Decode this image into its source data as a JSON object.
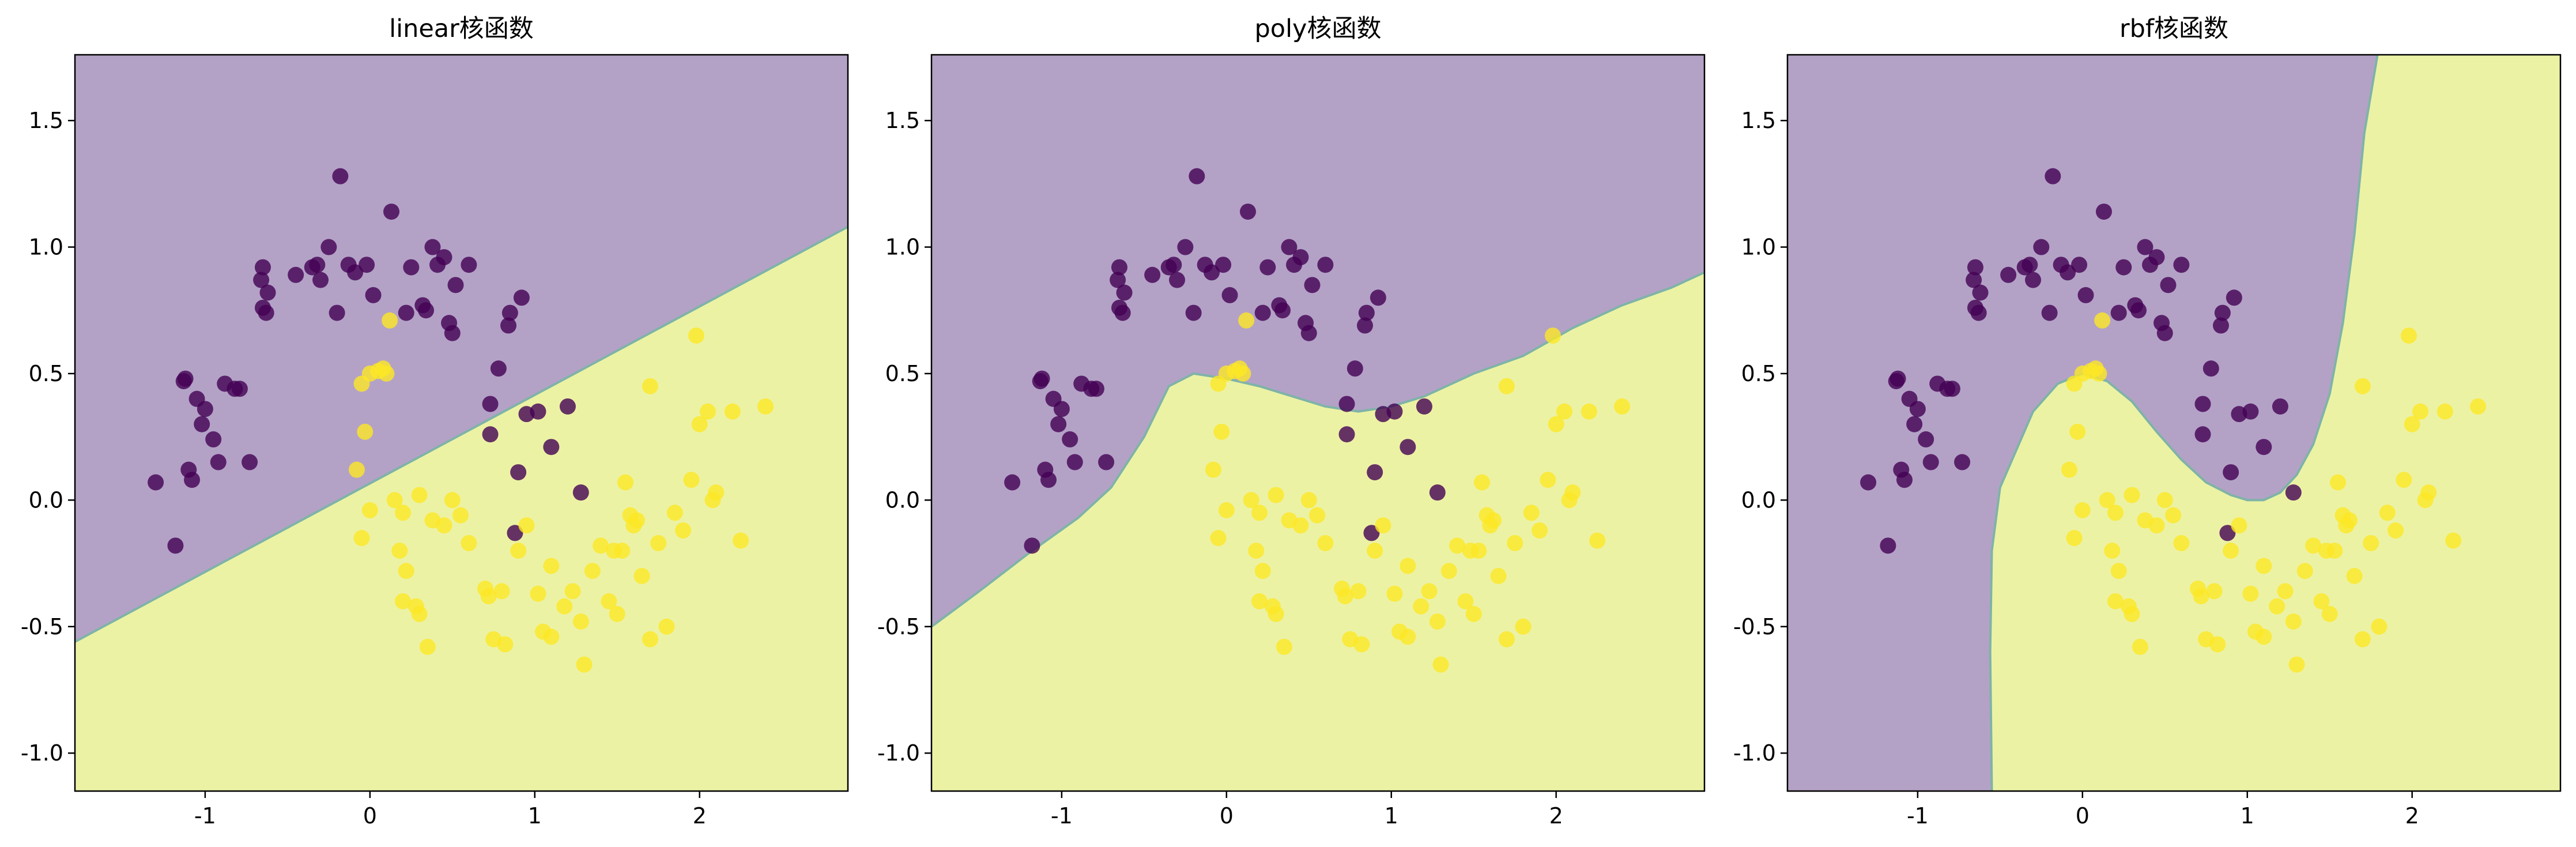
{
  "chart_data": [
    {
      "type": "scatter",
      "title": "linear核函数",
      "kernel": "linear",
      "xlim": [
        -1.79,
        2.9
      ],
      "ylim": [
        -1.15,
        1.76
      ],
      "xticks": [
        -1,
        0,
        1,
        2
      ],
      "yticks": [
        -1.0,
        -0.5,
        0.0,
        0.5,
        1.0,
        1.5
      ],
      "decision_boundary": [
        [
          -1.79,
          -0.56
        ],
        [
          2.9,
          1.08
        ]
      ]
    },
    {
      "type": "scatter",
      "title": "poly核函数",
      "kernel": "poly",
      "xlim": [
        -1.79,
        2.9
      ],
      "ylim": [
        -1.15,
        1.76
      ],
      "xticks": [
        -1,
        0,
        1,
        2
      ],
      "yticks": [
        -1.0,
        -0.5,
        0.0,
        0.5,
        1.0,
        1.5
      ],
      "decision_boundary": [
        [
          -1.79,
          -0.5
        ],
        [
          -1.5,
          -0.36
        ],
        [
          -1.2,
          -0.21
        ],
        [
          -0.9,
          -0.07
        ],
        [
          -0.7,
          0.05
        ],
        [
          -0.5,
          0.25
        ],
        [
          -0.35,
          0.45
        ],
        [
          -0.2,
          0.5
        ],
        [
          0.0,
          0.48
        ],
        [
          0.2,
          0.45
        ],
        [
          0.4,
          0.41
        ],
        [
          0.6,
          0.37
        ],
        [
          0.8,
          0.35
        ],
        [
          1.0,
          0.37
        ],
        [
          1.2,
          0.41
        ],
        [
          1.5,
          0.5
        ],
        [
          1.8,
          0.57
        ],
        [
          2.1,
          0.68
        ],
        [
          2.4,
          0.77
        ],
        [
          2.7,
          0.84
        ],
        [
          2.9,
          0.9
        ]
      ]
    },
    {
      "type": "scatter",
      "title": "rbf核函数",
      "kernel": "rbf",
      "xlim": [
        -1.79,
        2.9
      ],
      "ylim": [
        -1.15,
        1.76
      ],
      "xticks": [
        -1,
        0,
        1,
        2
      ],
      "yticks": [
        -1.0,
        -0.5,
        0.0,
        0.5,
        1.0,
        1.5
      ],
      "decision_boundary": [
        [
          -0.55,
          -1.15
        ],
        [
          -0.56,
          -0.6
        ],
        [
          -0.55,
          -0.2
        ],
        [
          -0.5,
          0.05
        ],
        [
          -0.4,
          0.2
        ],
        [
          -0.3,
          0.35
        ],
        [
          -0.15,
          0.46
        ],
        [
          0.0,
          0.5
        ],
        [
          0.15,
          0.47
        ],
        [
          0.3,
          0.39
        ],
        [
          0.45,
          0.27
        ],
        [
          0.6,
          0.16
        ],
        [
          0.75,
          0.07
        ],
        [
          0.9,
          0.02
        ],
        [
          1.0,
          0.0
        ],
        [
          1.1,
          0.0
        ],
        [
          1.2,
          0.03
        ],
        [
          1.3,
          0.1
        ],
        [
          1.4,
          0.22
        ],
        [
          1.5,
          0.42
        ],
        [
          1.58,
          0.7
        ],
        [
          1.65,
          1.05
        ],
        [
          1.71,
          1.45
        ],
        [
          1.79,
          1.76
        ]
      ]
    }
  ],
  "points": {
    "class0": [
      [
        -1.3,
        0.07
      ],
      [
        -1.18,
        -0.18
      ],
      [
        -1.13,
        0.47
      ],
      [
        -1.05,
        0.4
      ],
      [
        -1.1,
        0.12
      ],
      [
        -1.08,
        0.08
      ],
      [
        -1.12,
        0.48
      ],
      [
        -1.0,
        0.36
      ],
      [
        -1.02,
        0.3
      ],
      [
        -0.95,
        0.24
      ],
      [
        -0.92,
        0.15
      ],
      [
        -0.88,
        0.46
      ],
      [
        -0.82,
        0.44
      ],
      [
        -0.79,
        0.44
      ],
      [
        -0.73,
        0.15
      ],
      [
        -0.65,
        0.92
      ],
      [
        -0.66,
        0.87
      ],
      [
        -0.65,
        0.76
      ],
      [
        -0.63,
        0.74
      ],
      [
        -0.62,
        0.82
      ],
      [
        -0.45,
        0.89
      ],
      [
        -0.35,
        0.92
      ],
      [
        -0.32,
        0.93
      ],
      [
        -0.3,
        0.87
      ],
      [
        -0.25,
        1.0
      ],
      [
        -0.2,
        0.74
      ],
      [
        -0.18,
        1.28
      ],
      [
        -0.13,
        0.93
      ],
      [
        -0.09,
        0.9
      ],
      [
        -0.02,
        0.93
      ],
      [
        0.02,
        0.81
      ],
      [
        0.13,
        1.14
      ],
      [
        0.22,
        0.74
      ],
      [
        0.25,
        0.92
      ],
      [
        0.32,
        0.77
      ],
      [
        0.34,
        0.75
      ],
      [
        0.38,
        1.0
      ],
      [
        0.41,
        0.93
      ],
      [
        0.45,
        0.96
      ],
      [
        0.48,
        0.7
      ],
      [
        0.5,
        0.66
      ],
      [
        0.52,
        0.85
      ],
      [
        0.6,
        0.93
      ],
      [
        0.73,
        0.26
      ],
      [
        0.73,
        0.38
      ],
      [
        0.78,
        0.52
      ],
      [
        0.84,
        0.69
      ],
      [
        0.9,
        0.11
      ],
      [
        0.95,
        0.34
      ],
      [
        0.92,
        0.8
      ],
      [
        1.02,
        0.35
      ],
      [
        1.1,
        0.21
      ],
      [
        1.2,
        0.37
      ],
      [
        1.28,
        0.03
      ],
      [
        0.88,
        -0.13
      ],
      [
        0.85,
        0.74
      ]
    ],
    "class1": [
      [
        -0.08,
        0.12
      ],
      [
        -0.05,
        0.46
      ],
      [
        -0.03,
        0.27
      ],
      [
        0.0,
        0.5
      ],
      [
        0.05,
        0.51
      ],
      [
        0.08,
        0.52
      ],
      [
        0.1,
        0.5
      ],
      [
        0.12,
        0.71
      ],
      [
        0.0,
        -0.04
      ],
      [
        -0.05,
        -0.15
      ],
      [
        0.15,
        0.0
      ],
      [
        0.2,
        -0.05
      ],
      [
        0.18,
        -0.2
      ],
      [
        0.22,
        -0.28
      ],
      [
        0.2,
        -0.4
      ],
      [
        0.28,
        -0.42
      ],
      [
        0.3,
        -0.45
      ],
      [
        0.35,
        -0.58
      ],
      [
        0.3,
        0.02
      ],
      [
        0.38,
        -0.08
      ],
      [
        0.45,
        -0.1
      ],
      [
        0.5,
        0.0
      ],
      [
        0.55,
        -0.06
      ],
      [
        0.6,
        -0.17
      ],
      [
        0.7,
        -0.35
      ],
      [
        0.72,
        -0.38
      ],
      [
        0.75,
        -0.55
      ],
      [
        0.82,
        -0.57
      ],
      [
        0.8,
        -0.36
      ],
      [
        0.9,
        -0.2
      ],
      [
        0.95,
        -0.1
      ],
      [
        1.02,
        -0.37
      ],
      [
        1.05,
        -0.52
      ],
      [
        1.1,
        -0.54
      ],
      [
        1.1,
        -0.26
      ],
      [
        1.18,
        -0.42
      ],
      [
        1.23,
        -0.36
      ],
      [
        1.28,
        -0.48
      ],
      [
        1.3,
        -0.65
      ],
      [
        1.35,
        -0.28
      ],
      [
        1.4,
        -0.18
      ],
      [
        1.45,
        -0.4
      ],
      [
        1.5,
        -0.45
      ],
      [
        1.53,
        -0.2
      ],
      [
        1.55,
        0.07
      ],
      [
        1.58,
        -0.06
      ],
      [
        1.6,
        -0.1
      ],
      [
        1.62,
        -0.08
      ],
      [
        1.65,
        -0.3
      ],
      [
        1.7,
        -0.55
      ],
      [
        1.75,
        -0.17
      ],
      [
        1.8,
        -0.5
      ],
      [
        1.85,
        -0.05
      ],
      [
        1.9,
        -0.12
      ],
      [
        1.95,
        0.08
      ],
      [
        1.98,
        0.65
      ],
      [
        2.0,
        0.3
      ],
      [
        2.05,
        0.35
      ],
      [
        2.08,
        0.0
      ],
      [
        2.1,
        0.03
      ],
      [
        2.2,
        0.35
      ],
      [
        2.25,
        -0.16
      ],
      [
        2.4,
        0.37
      ],
      [
        1.7,
        0.45
      ],
      [
        1.48,
        -0.2
      ]
    ]
  },
  "colors": {
    "region0": "#b3a2c6",
    "region1": "#ecf2a4",
    "boundary": "#7fb3a8",
    "class0": "#440154",
    "class1": "#fde725"
  }
}
